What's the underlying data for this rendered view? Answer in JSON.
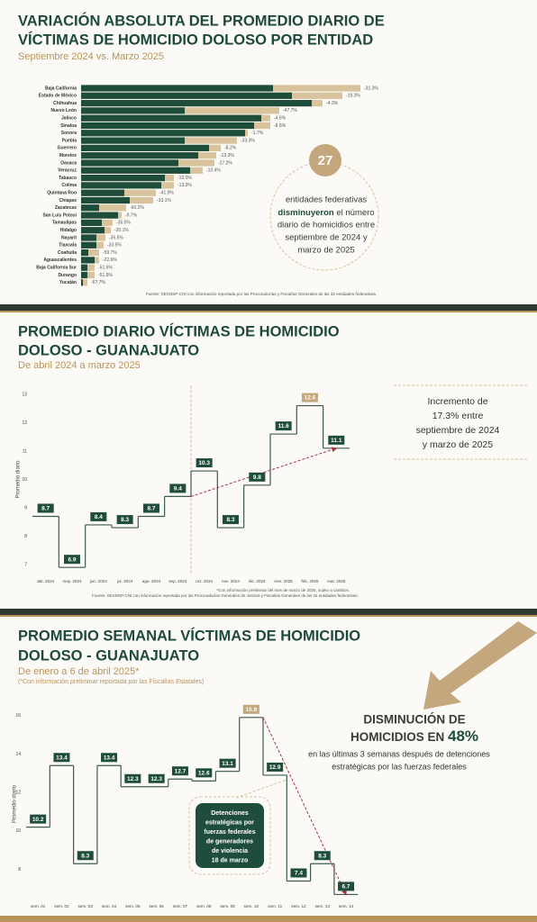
{
  "chart_data": [
    {
      "type": "hbar",
      "title": [
        "VARIACIÓN ABSOLUTA DEL PROMEDIO DIARIO DE",
        "VÍCTIMAS DE HOMICIDIO DOLOSO POR ENTIDAD"
      ],
      "subtitle": "Septiembre 2024 vs. Marzo 2025",
      "categories": [
        "Baja California",
        "Estado de México",
        "Chihuahua",
        "Nuevo León",
        "Jalisco",
        "Sinaloa",
        "Sonora",
        "Puebla",
        "Guerrero",
        "Morelos",
        "Oaxaca",
        "Veracruz",
        "Tabasco",
        "Colima",
        "Quintana Roo",
        "Chiapas",
        "Zacatecas",
        "San Luis Potosí",
        "Tamaulipas",
        "Hidalgo",
        "Nayarit",
        "Tlaxcala",
        "Coahuila",
        "Aguascalientes",
        "Baja California Sur",
        "Durango",
        "Yucatán"
      ],
      "series": [
        {
          "color": "#d8c39c",
          "values": [
            310,
            290,
            268,
            220,
            210,
            210,
            185,
            173,
            155,
            150,
            148,
            135,
            103,
            103,
            83,
            80,
            50,
            45,
            35,
            33,
            27,
            25,
            20,
            20,
            15,
            15,
            7
          ]
        },
        {
          "color": "#1e4d3b",
          "values": [
            213,
            234,
            256,
            115,
            200,
            192,
            182,
            115,
            142,
            130,
            108,
            121,
            93,
            89,
            48,
            54,
            20,
            41,
            23,
            26,
            17,
            17,
            8,
            15,
            7,
            7,
            2
          ]
        }
      ],
      "change_labels": [
        "-31.3%",
        "-19.3%",
        "-4.3%",
        "-47.7%",
        "-4.6%",
        "-8.6%",
        "-1.7%",
        "-33.3%",
        "-8.2%",
        "-13.3%",
        "-27.2%",
        "-10.4%",
        "-10.0%",
        "-13.3%",
        "-41.9%",
        "-33.1%",
        "-60.2%",
        "-9.7%",
        "-35.5%",
        "-20.1%",
        "-35.5%",
        "-33.5%",
        "-59.7%",
        "-22.6%",
        "-51.6%",
        "-51.6%",
        "-67.7%"
      ],
      "annotation_number": 27,
      "annotation_lines": [
        "entidades federativas",
        "disminuyeron",
        "el número",
        "diario de homicidios entre",
        "septiembre de 2024 y",
        "marzo de 2025"
      ],
      "source": "Fuente: SESNSP-CNI con información reportada por las Procuradurías y Fiscalías Generales de las 32 entidades federativas."
    },
    {
      "type": "step",
      "title": [
        "PROMEDIO DIARIO VÍCTIMAS DE HOMICIDIO",
        "DOLOSO - GUANAJUATO"
      ],
      "subtitle": "De abril 2024 a marzo 2025",
      "y_label": "Promedio diario",
      "categories": [
        "abr. 2024",
        "may. 2024",
        "jun. 2024",
        "jul. 2024",
        "ago. 2024",
        "sep. 2024",
        "oct. 2024",
        "nov. 2024",
        "dic. 2024",
        "ene. 2025",
        "feb. 2025",
        "mar. 2025"
      ],
      "values": [
        8.7,
        6.9,
        8.4,
        8.3,
        8.7,
        9.4,
        10.3,
        8.3,
        9.8,
        11.6,
        12.6,
        11.1
      ],
      "label_colors": [
        "#1e4d3b",
        "#1e4d3b",
        "#1e4d3b",
        "#1e4d3b",
        "#1e4d3b",
        "#1e4d3b",
        "#1e4d3b",
        "#1e4d3b",
        "#1e4d3b",
        "#1e4d3b",
        "#c4a77d",
        "#1e4d3b"
      ],
      "ylim": [
        6.7,
        13.3
      ],
      "yticks": [
        7,
        8,
        9,
        10,
        11,
        12,
        13
      ],
      "trend": {
        "start": 5,
        "end": 11,
        "color": "#a8323e"
      },
      "divider_at_trend": true,
      "box_lines": [
        "Incremento de",
        "17.3% entre",
        "septiembre de 2024",
        "y marzo de 2025"
      ],
      "note": "*Con información preliminar del mes de marzo de 2025, sujeto a cambios.",
      "source": "Fuente: SESNSP-CNI con información reportada por las Procuradurías Generales de Justicia y Fiscalías Generales de las 32 entidades federativas."
    },
    {
      "type": "step",
      "title": [
        "PROMEDIO SEMANAL VÍCTIMAS DE HOMICIDIO",
        "DOLOSO - GUANAJUATO"
      ],
      "subtitle": "De enero a 6 de abril 2025*",
      "subnote": "(*Con información preliminar reportada por las Fiscalías Estatales)",
      "y_label": "Promedio diario",
      "categories": [
        "sem. 01",
        "sem. 02",
        "sem. 03",
        "sem. 04",
        "sem. 05",
        "sem. 06",
        "sem. 07",
        "sem. 08",
        "sem. 09",
        "sem. 10",
        "sem. 11",
        "sem. 12",
        "sem. 13",
        "sem. 14"
      ],
      "values": [
        10.2,
        13.4,
        8.3,
        13.4,
        12.3,
        12.3,
        12.7,
        12.6,
        13.1,
        15.9,
        12.9,
        7.4,
        8.3,
        6.7
      ],
      "label_colors": [
        "#1e4d3b",
        "#1e4d3b",
        "#1e4d3b",
        "#1e4d3b",
        "#1e4d3b",
        "#1e4d3b",
        "#1e4d3b",
        "#1e4d3b",
        "#1e4d3b",
        "#c4a77d",
        "#1e4d3b",
        "#1e4d3b",
        "#1e4d3b",
        "#1e4d3b"
      ],
      "ylim": [
        6.3,
        16.5
      ],
      "yticks": [
        8,
        10,
        12,
        14,
        16
      ],
      "trend": {
        "start": 9,
        "end": 13,
        "color": "#a8323e"
      },
      "divider_at_trend": false,
      "headline": [
        "DISMINUCIÓN DE",
        "HOMICIDIOS EN",
        "48%"
      ],
      "headline_detail": [
        "en las últimas 3 semanas después de detenciones",
        "estratégicas por las fuerzas federales"
      ],
      "box_lines": [
        "Detenciones",
        "estratégicas por",
        "fuerzas federales",
        "de generadores",
        "de violencia",
        "18 de  marzo"
      ]
    }
  ]
}
